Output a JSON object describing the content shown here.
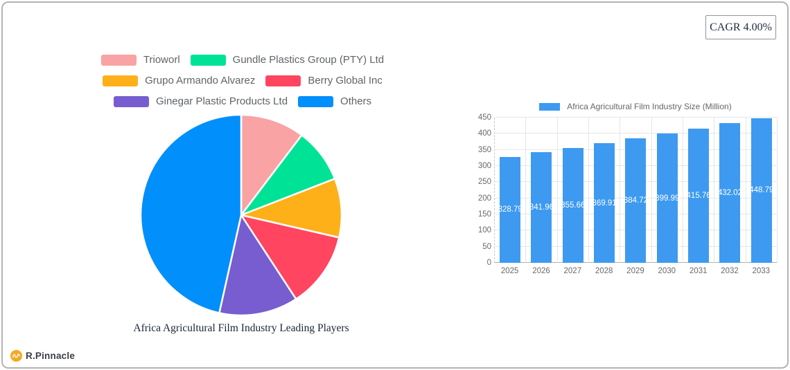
{
  "cagr_badge": {
    "label": "CAGR 4.00%"
  },
  "logo": {
    "text": "R.Pinnacle",
    "icon": "pulse-circle-icon",
    "icon_color": "#F7A823"
  },
  "chart_data": [
    {
      "type": "pie",
      "title": "Africa Agricultural Film Industry Leading Players",
      "legend_position": "top",
      "start_angle_deg": 0,
      "direction": "clockwise",
      "values_are": "percent share estimated from slice angles",
      "series": [
        {
          "name": "Trioworl",
          "value": 10.3,
          "color": "#F9A3A4"
        },
        {
          "name": "Gundle Plastics Group (PTY) Ltd",
          "value": 8.8,
          "color": "#00E396"
        },
        {
          "name": "Grupo Armando Alvarez",
          "value": 9.5,
          "color": "#FEB019"
        },
        {
          "name": "Berry Global Inc",
          "value": 12.2,
          "color": "#FF4560"
        },
        {
          "name": "Ginegar Plastic Products Ltd",
          "value": 12.7,
          "color": "#775DD0"
        },
        {
          "name": "Others",
          "value": 46.5,
          "color": "#008FFB"
        }
      ]
    },
    {
      "type": "bar",
      "legend": "Africa Agricultural Film Industry Size (Million)",
      "categories": [
        "2025",
        "2026",
        "2027",
        "2028",
        "2029",
        "2030",
        "2031",
        "2032",
        "2033"
      ],
      "values": [
        328.79,
        341.96,
        355.66,
        369.91,
        384.72,
        399.99,
        415.76,
        432.02,
        448.79
      ],
      "bar_color": "#3D9AF0",
      "xlabel": "",
      "ylabel": "",
      "ylim": [
        0,
        450
      ],
      "y_ticks": [
        0,
        50,
        100,
        150,
        200,
        250,
        300,
        350,
        400,
        450
      ],
      "grid": true,
      "value_labels": "inside bars, white, centered"
    }
  ]
}
